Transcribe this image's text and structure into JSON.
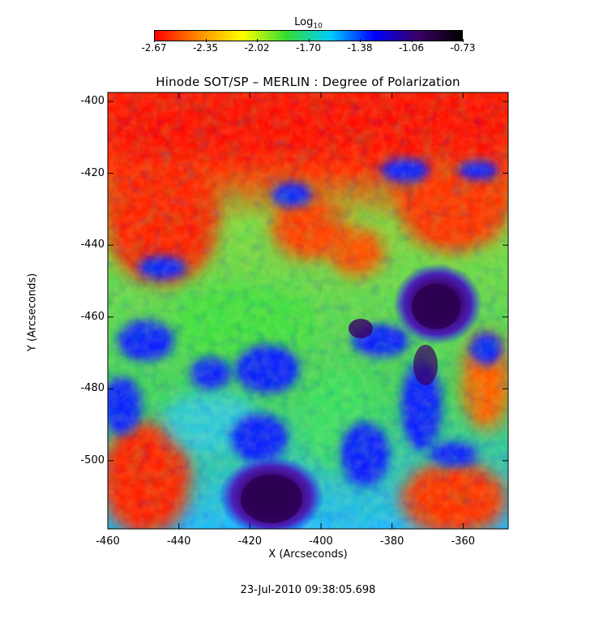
{
  "colorbar": {
    "label": "Log",
    "label_subscript": "10",
    "ticks": [
      "-2.67",
      "-2.35",
      "-2.02",
      "-1.70",
      "-1.38",
      "-1.06",
      "-0.73"
    ],
    "colors": [
      "#ff0000",
      "#ff8c00",
      "#ffff00",
      "#33dd33",
      "#00ccff",
      "#0000ff",
      "#3a0064",
      "#000000"
    ]
  },
  "title": "Hinode SOT/SP – MERLIN : Degree of Polarization",
  "axes": {
    "xlabel": "X (Arcseconds)",
    "ylabel": "Y (Arcseconds)",
    "xticks": [
      "-460",
      "-440",
      "-420",
      "-400",
      "-380",
      "-360"
    ],
    "yticks": [
      "-400",
      "-420",
      "-440",
      "-460",
      "-480",
      "-500"
    ]
  },
  "footer": {
    "timestamp": "23-Jul-2010 09:38:05.698"
  }
}
